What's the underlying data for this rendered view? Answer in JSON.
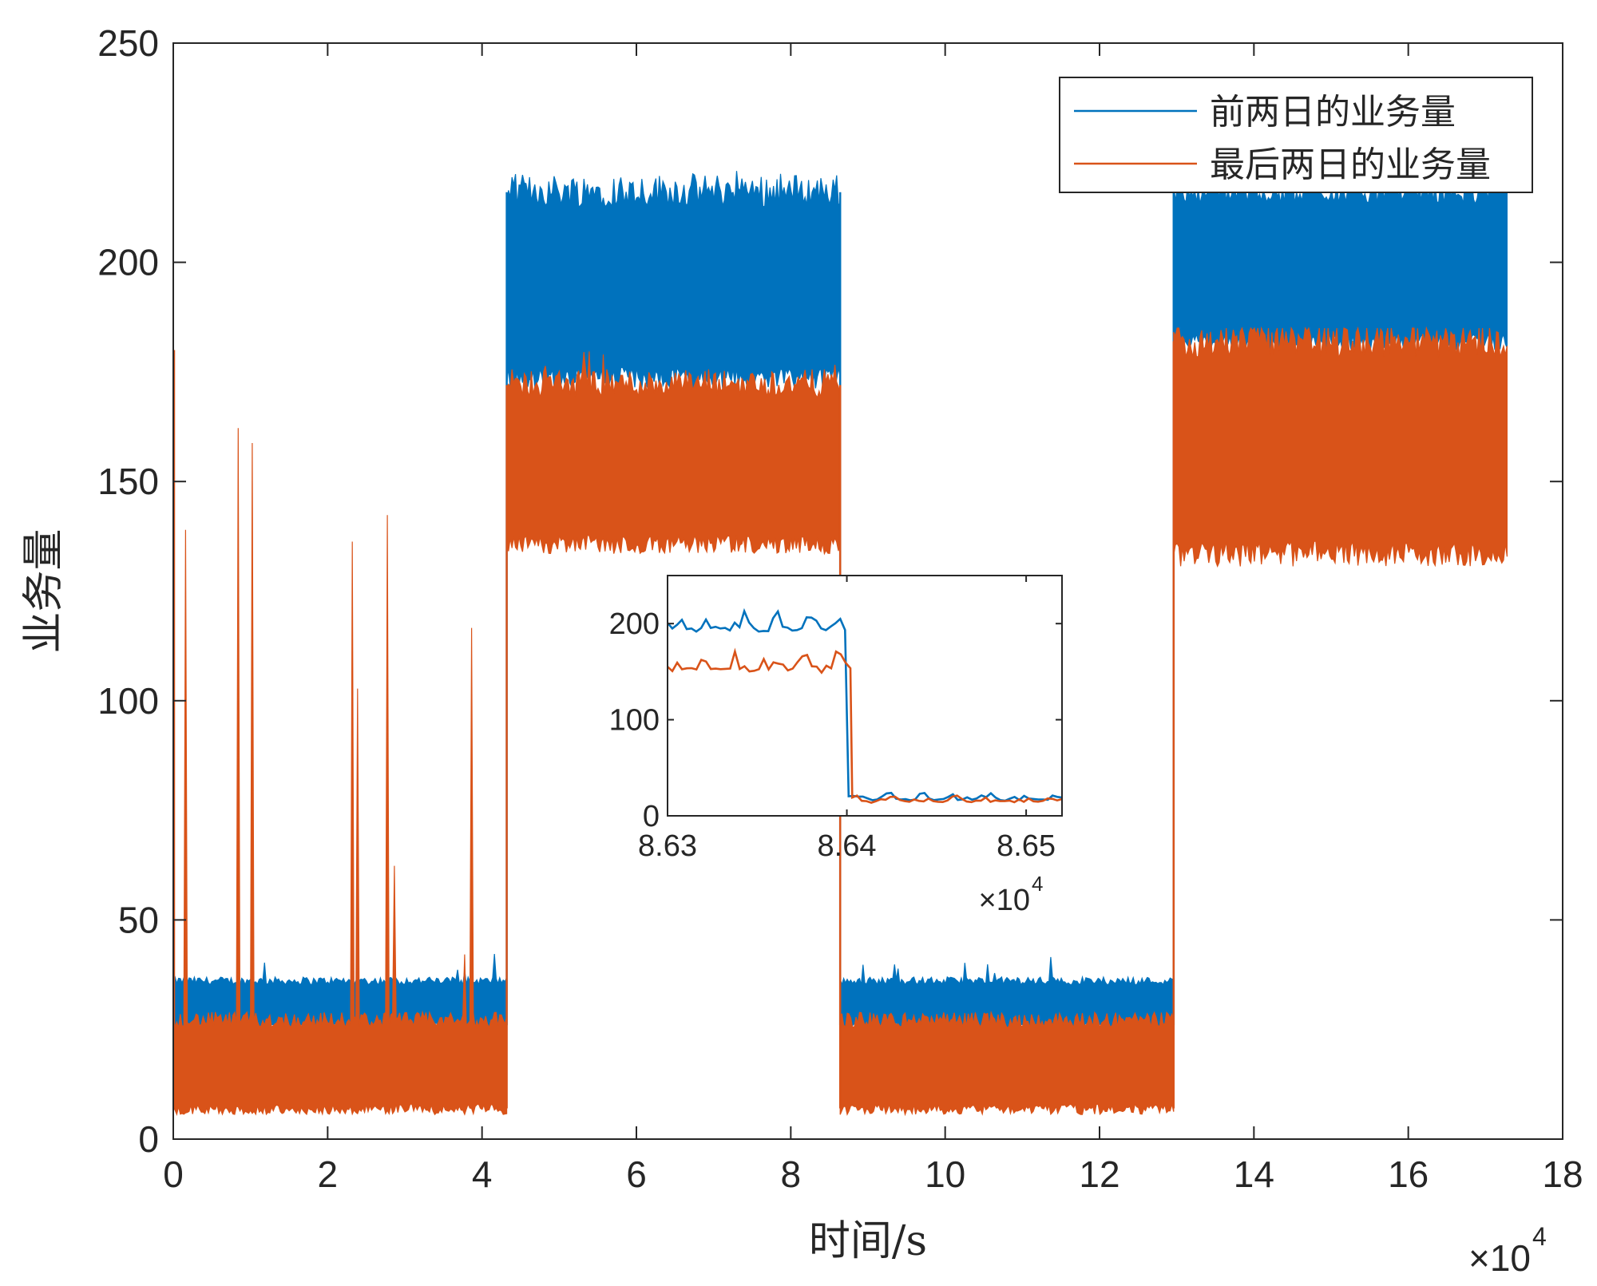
{
  "chart_data": [
    {
      "type": "line",
      "role": "main",
      "title": "",
      "xlabel": "时间/s",
      "ylabel": "业务量",
      "x_exponent_label": "×10",
      "x_exponent_power": "4",
      "x_scale": 10000,
      "xlim": [
        0,
        18
      ],
      "ylim": [
        0,
        250
      ],
      "xticks": [
        0,
        2,
        4,
        6,
        8,
        10,
        12,
        14,
        16,
        18
      ],
      "yticks": [
        0,
        50,
        100,
        150,
        200,
        250
      ],
      "grid": false,
      "legend_position": "top-right",
      "series": [
        {
          "name": "前两日的业务量",
          "color": "#0072BD",
          "segments": [
            {
              "x_start": 0.0,
              "x_end": 4.32,
              "low": 26,
              "high": 36,
              "peak": 43
            },
            {
              "x_start": 4.32,
              "x_end": 8.64,
              "low": 174,
              "high": 216,
              "peak": 224
            },
            {
              "x_start": 8.64,
              "x_end": 12.96,
              "low": 26,
              "high": 36,
              "peak": 42
            },
            {
              "x_start": 12.96,
              "x_end": 17.28,
              "low": 182,
              "high": 216,
              "peak": 218
            }
          ]
        },
        {
          "name": "最后两日的业务量",
          "color": "#D95319",
          "segments": [
            {
              "x_start": 0.0,
              "x_end": 4.32,
              "low": 7,
              "high": 27,
              "peak": 180
            },
            {
              "x_start": 4.32,
              "x_end": 8.64,
              "low": 136,
              "high": 172,
              "peak": 181
            },
            {
              "x_start": 8.64,
              "x_end": 12.96,
              "low": 7,
              "high": 27,
              "peak": 30
            },
            {
              "x_start": 12.96,
              "x_end": 17.28,
              "low": 134,
              "high": 182,
              "peak": 185
            }
          ]
        }
      ]
    },
    {
      "type": "line",
      "role": "inset",
      "title": "",
      "xlabel": "",
      "ylabel": "",
      "x_exponent_label": "×10",
      "x_exponent_power": "4",
      "x_scale": 10000,
      "xlim": [
        8.63,
        8.652
      ],
      "ylim": [
        0,
        250
      ],
      "xticks": [
        8.63,
        8.64,
        8.65
      ],
      "xtick_labels": [
        "8.63",
        "8.64",
        "8.65"
      ],
      "yticks": [
        0,
        100,
        200
      ],
      "grid": false,
      "series": [
        {
          "name": "前两日的业务量",
          "color": "#0072BD",
          "before": {
            "x_start": 8.63,
            "x_end": 8.6399,
            "low": 182,
            "high": 216
          },
          "after": {
            "x_start": 8.6401,
            "x_end": 8.652,
            "low": 12,
            "high": 26
          }
        },
        {
          "name": "最后两日的业务量",
          "color": "#D95319",
          "before": {
            "x_start": 8.63,
            "x_end": 8.6402,
            "low": 140,
            "high": 174
          },
          "after": {
            "x_start": 8.6403,
            "x_end": 8.652,
            "low": 10,
            "high": 24
          }
        }
      ]
    }
  ]
}
